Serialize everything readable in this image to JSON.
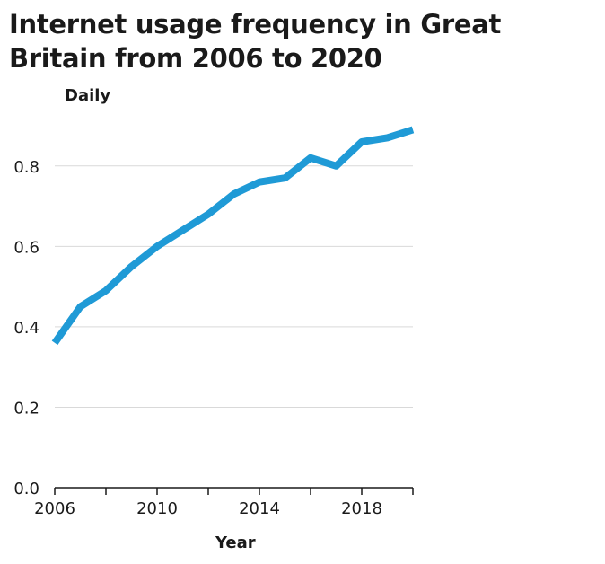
{
  "chart_data": {
    "type": "line",
    "title": "Internet usage frequency in Great Britain from 2006 to 2020",
    "ylabel": "Daily",
    "xlabel": "Year",
    "x": [
      2006,
      2007,
      2008,
      2009,
      2010,
      2011,
      2012,
      2013,
      2014,
      2015,
      2016,
      2017,
      2018,
      2019,
      2020
    ],
    "series": [
      {
        "values": [
          0.36,
          0.45,
          0.49,
          0.55,
          0.6,
          0.64,
          0.68,
          0.73,
          0.76,
          0.77,
          0.82,
          0.8,
          0.86,
          0.87,
          0.89
        ]
      }
    ],
    "xlim": [
      2006,
      2020
    ],
    "ylim": [
      0,
      0.9
    ],
    "yticks": [
      0.0,
      0.2,
      0.4,
      0.6,
      0.8
    ],
    "ytick_labels": [
      "0.0",
      "0.2",
      "0.4",
      "0.6",
      "0.8"
    ],
    "xticks": [
      2006,
      2008,
      2010,
      2012,
      2014,
      2016,
      2018,
      2020
    ],
    "xtick_labels": [
      {
        "value": 2006,
        "label": "2006"
      },
      {
        "value": 2010,
        "label": "2010"
      },
      {
        "value": 2014,
        "label": "2014"
      },
      {
        "value": 2018,
        "label": "2018"
      }
    ],
    "grid": "horizontal",
    "line_color": "#1f9ad6"
  }
}
